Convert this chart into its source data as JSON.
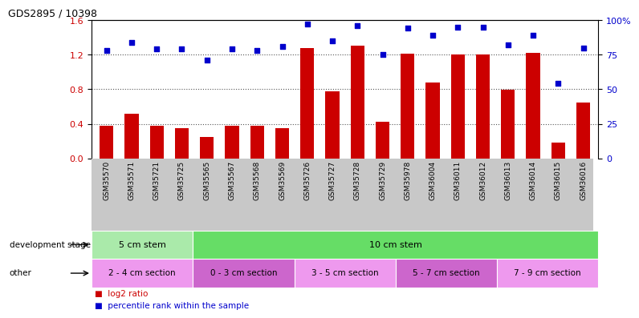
{
  "title": "GDS2895 / 10398",
  "categories": [
    "GSM35570",
    "GSM35571",
    "GSM35721",
    "GSM35725",
    "GSM35565",
    "GSM35567",
    "GSM35568",
    "GSM35569",
    "GSM35726",
    "GSM35727",
    "GSM35728",
    "GSM35729",
    "GSM35978",
    "GSM36004",
    "GSM36011",
    "GSM36012",
    "GSM36013",
    "GSM36014",
    "GSM36015",
    "GSM36016"
  ],
  "log2_ratio": [
    0.38,
    0.52,
    0.38,
    0.35,
    0.25,
    0.38,
    0.38,
    0.35,
    1.28,
    0.78,
    1.3,
    0.42,
    1.21,
    0.88,
    1.2,
    1.2,
    0.79,
    1.22,
    0.18,
    0.65
  ],
  "percentile": [
    78,
    84,
    79,
    79,
    71,
    79,
    78,
    81,
    97,
    85,
    96,
    75,
    94,
    89,
    95,
    95,
    82,
    89,
    54,
    80
  ],
  "ylim_left": [
    0,
    1.6
  ],
  "ylim_right": [
    0,
    100
  ],
  "yticks_left": [
    0,
    0.4,
    0.8,
    1.2,
    1.6
  ],
  "yticks_right": [
    0,
    25,
    50,
    75,
    100
  ],
  "ytick_labels_right": [
    "0",
    "25",
    "50",
    "75",
    "100%"
  ],
  "bar_color": "#cc0000",
  "dot_color": "#0000cc",
  "xtick_bg": "#c8c8c8",
  "dev_stage_row": [
    {
      "label": "5 cm stem",
      "start": 0,
      "end": 4,
      "color": "#aaeaaa"
    },
    {
      "label": "10 cm stem",
      "start": 4,
      "end": 20,
      "color": "#66dd66"
    }
  ],
  "other_row": [
    {
      "label": "2 - 4 cm section",
      "start": 0,
      "end": 4,
      "color": "#ee99ee"
    },
    {
      "label": "0 - 3 cm section",
      "start": 4,
      "end": 8,
      "color": "#cc66cc"
    },
    {
      "label": "3 - 5 cm section",
      "start": 8,
      "end": 12,
      "color": "#ee99ee"
    },
    {
      "label": "5 - 7 cm section",
      "start": 12,
      "end": 16,
      "color": "#cc66cc"
    },
    {
      "label": "7 - 9 cm section",
      "start": 16,
      "end": 20,
      "color": "#ee99ee"
    }
  ],
  "left_labels": [
    "development stage",
    "other"
  ],
  "legend_items": [
    {
      "label": "log2 ratio",
      "color": "#cc0000"
    },
    {
      "label": "percentile rank within the sample",
      "color": "#0000cc"
    }
  ],
  "dotted_line_color": "#555555"
}
